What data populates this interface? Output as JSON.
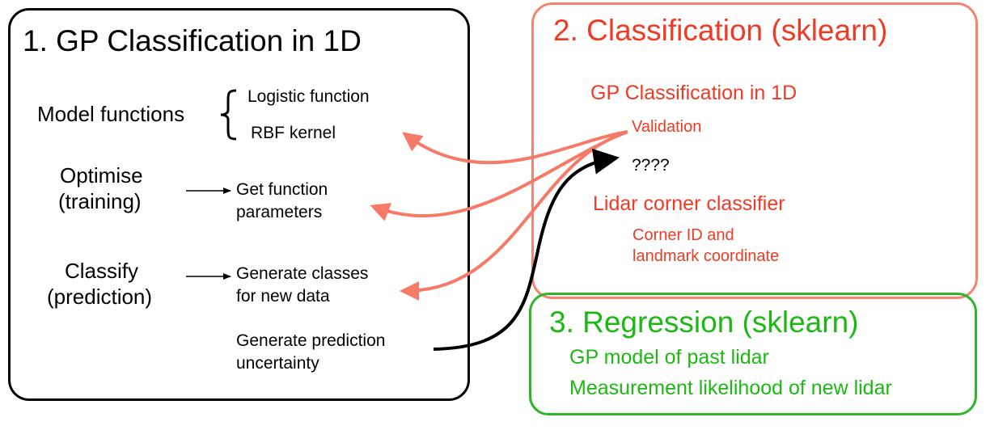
{
  "colors": {
    "black": "#000000",
    "red": "#ef3a24",
    "arrow_red": "#f57a67",
    "box2_border": "#f4836f",
    "green": "#1db814",
    "box3_border": "#2fb52a"
  },
  "section1": {
    "title": "1. GP Classification in 1D",
    "model_functions": "Model functions",
    "logistic": "Logistic function",
    "rbf": "RBF kernel",
    "optimise_l1": "Optimise",
    "optimise_l2": "(training)",
    "get_params_l1": "Get function",
    "get_params_l2": "parameters",
    "classify_l1": "Classify",
    "classify_l2": "(prediction)",
    "gen_classes_l1": "Generate classes",
    "gen_classes_l2": "for new data",
    "gen_pred_l1": "Generate prediction",
    "gen_pred_l2": "uncertainty"
  },
  "section2": {
    "title": "2. Classification (sklearn)",
    "gp_class": "GP Classification in 1D",
    "validation": "Validation",
    "unknown": "????",
    "lidar": "Lidar corner classifier",
    "corner_l1": "Corner ID and",
    "corner_l2": "landmark coordinate"
  },
  "section3": {
    "title": "3. Regression (sklearn)",
    "line1": "GP model of past lidar",
    "line2": "Measurement likelihood of new lidar"
  }
}
